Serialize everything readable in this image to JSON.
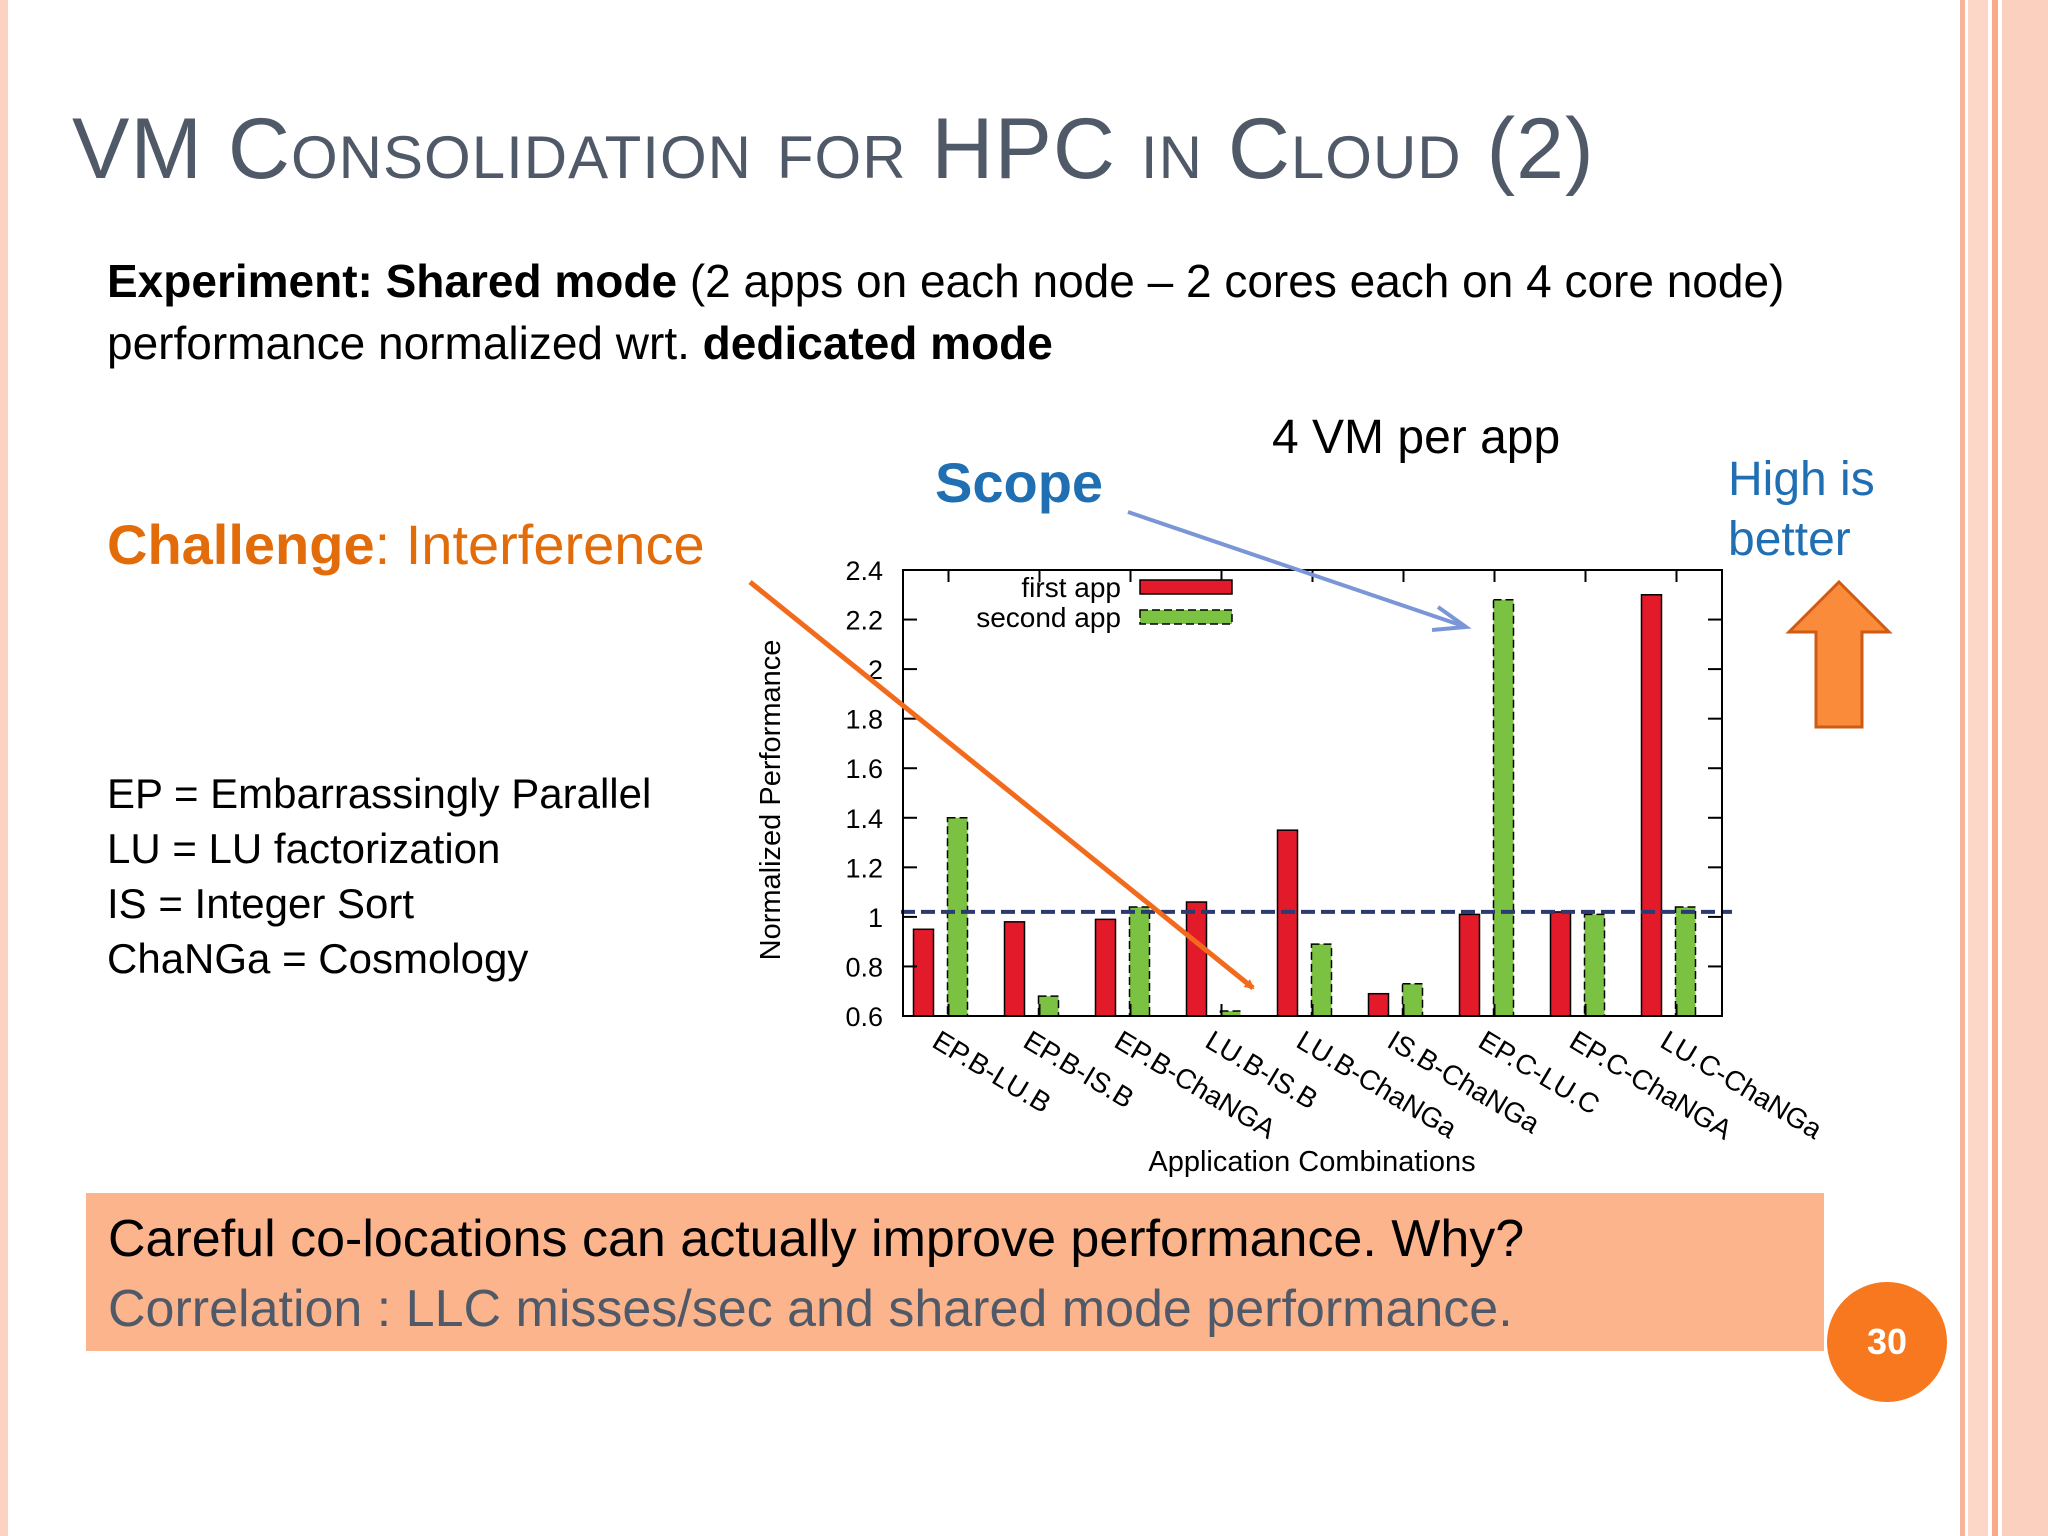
{
  "slide": {
    "title_parts": [
      "VM ",
      "Consolidation",
      " ",
      "for",
      " HPC ",
      "in",
      " ",
      "Cloud",
      " (2)"
    ],
    "experiment": {
      "b1": "Experiment: Shared mode",
      "t1": " (2 apps on each node – 2 cores each on 4 core node) performance normalized wrt. ",
      "b2": "dedicated mode"
    },
    "challenge": {
      "label": "Challenge",
      "rest": ": Interference"
    },
    "scope": "Scope",
    "vm_per_app": "4 VM per app",
    "high_better": [
      "High is",
      "better"
    ],
    "abbrev": [
      "EP = Embarrassingly Parallel",
      "LU = LU factorization",
      "IS = Integer Sort",
      "ChaNGa = Cosmology"
    ],
    "callout": {
      "line1": "Careful co-locations can actually improve performance. Why?",
      "line2": "Correlation : LLC misses/sec and shared mode performance."
    },
    "page_number": "30",
    "colors": {
      "title": "#4f5968",
      "challenge": "#e36c0a",
      "scope": "#1f6fb2",
      "callout_bg": "#fbb48c",
      "page_badge": "#f7781e",
      "first_app": "#e31a2a",
      "second_app": "#7cc242",
      "arrow_orange": "#f26b1d",
      "arrow_blue": "#7b96d6",
      "reference_line": "#2b3a70",
      "up_arrow": "#f98b3a"
    },
    "icons": [
      "up-arrow-icon"
    ]
  },
  "chart_data": {
    "type": "bar",
    "xlabel": "Application Combinations",
    "ylabel": "Normalized Performance",
    "ylim": [
      0.6,
      2.4
    ],
    "yticks": [
      0.6,
      0.8,
      1,
      1.2,
      1.4,
      1.6,
      1.8,
      2,
      2.2,
      2.4
    ],
    "ytick_labels": [
      "0.6",
      "0.8",
      "1",
      "1.2",
      "1.4",
      "1.6",
      "1.8",
      "2",
      "2.2",
      "2.4"
    ],
    "reference_line": 1.02,
    "legend_position": "top-left",
    "categories": [
      "EP.B-LU.B",
      "EP.B-IS.B",
      "EP.B-ChaNGA",
      "LU.B-IS.B",
      "LU.B-ChaNGa",
      "IS.B-ChaNGa",
      "EP.C-LU.C",
      "EP.C-ChaNGA",
      "LU.C-ChaNGa"
    ],
    "series": [
      {
        "name": "first app",
        "values": [
          0.95,
          0.98,
          0.99,
          1.06,
          1.35,
          0.69,
          1.01,
          1.02,
          2.3
        ]
      },
      {
        "name": "second app",
        "values": [
          1.4,
          0.68,
          1.04,
          0.62,
          0.89,
          0.73,
          2.28,
          1.01,
          1.04
        ]
      }
    ]
  }
}
